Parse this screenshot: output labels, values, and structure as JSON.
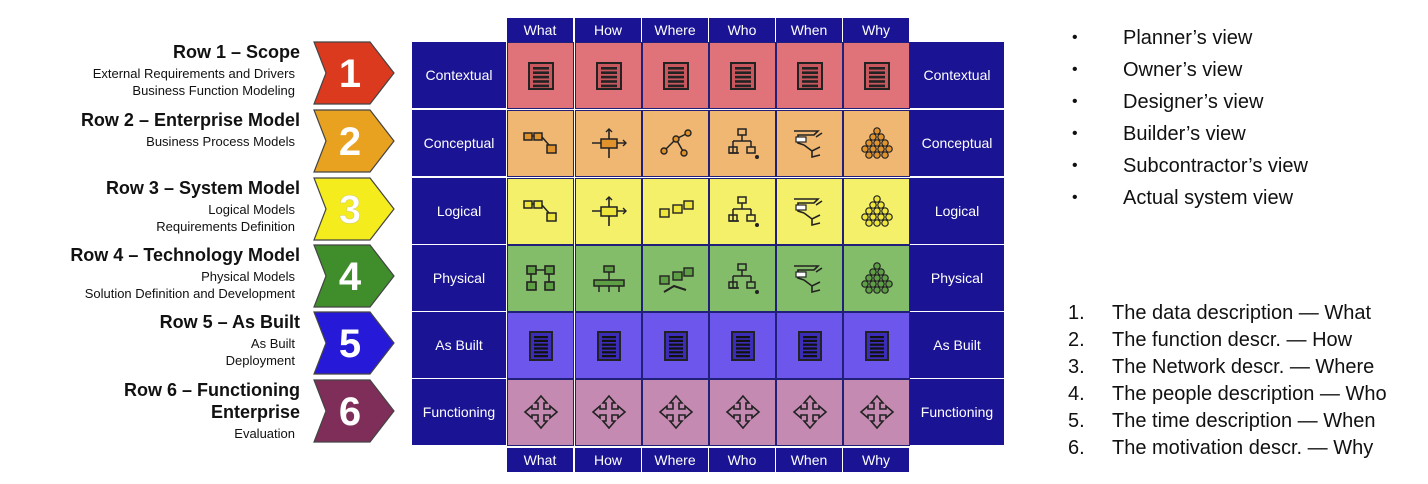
{
  "rows": [
    {
      "number": "1",
      "title": "Row 1 – Scope",
      "sub": [
        "External Requirements and Drivers",
        "Business Function Modeling"
      ],
      "label": "Contextual",
      "color": "#dc3a1f",
      "cell_color": "#e0727a"
    },
    {
      "number": "2",
      "title": "Row 2 – Enterprise Model",
      "sub": [
        "Business Process Models"
      ],
      "label": "Conceptual",
      "color": "#e8a21f",
      "cell_color": "#f0b772"
    },
    {
      "number": "3",
      "title": "Row 3 – System Model",
      "sub": [
        "Logical Models",
        "Requirements Definition"
      ],
      "label": "Logical",
      "color": "#f4ec1c",
      "cell_color": "#f5f06a"
    },
    {
      "number": "4",
      "title": "Row 4 – Technology Model",
      "sub": [
        "Physical Models",
        "Solution Definition and Development"
      ],
      "label": "Physical",
      "color": "#3f8d2b",
      "cell_color": "#84bd6a"
    },
    {
      "number": "5",
      "title": "Row 5 – As Built",
      "sub": [
        "As Built",
        "Deployment"
      ],
      "label": "As Built",
      "color": "#2719d8",
      "cell_color": "#6c56ec"
    },
    {
      "number": "6",
      "title": "Row 6 – Functioning Enterprise",
      "title_lines": [
        "Row 6 – Functioning",
        "Enterprise"
      ],
      "sub": [
        "Evaluation"
      ],
      "label": "Functioning",
      "color": "#7e2e58",
      "cell_color": "#c48ab1"
    }
  ],
  "columns": [
    "What",
    "How",
    "Where",
    "Who",
    "When",
    "Why"
  ],
  "header_color": "#1a1393",
  "row_icons": [
    "list-icon",
    "model-icon",
    "model-icon",
    "model-icon",
    "server-icon",
    "cross-arrows-icon"
  ],
  "views": [
    "Planner’s view",
    "Owner’s view",
    "Designer’s view",
    "Builder’s view",
    "Subcontractor’s view",
    "Actual system view"
  ],
  "descriptions": [
    {
      "num": "1.",
      "text": "The data description — What"
    },
    {
      "num": "2.",
      "text": "The function descr. — How"
    },
    {
      "num": "3.",
      "text": "The Network descr. — Where"
    },
    {
      "num": "4.",
      "text": "The people description — Who"
    },
    {
      "num": "5.",
      "text": "The time description — When"
    },
    {
      "num": "6.",
      "text": "The motivation descr. — Why"
    }
  ]
}
